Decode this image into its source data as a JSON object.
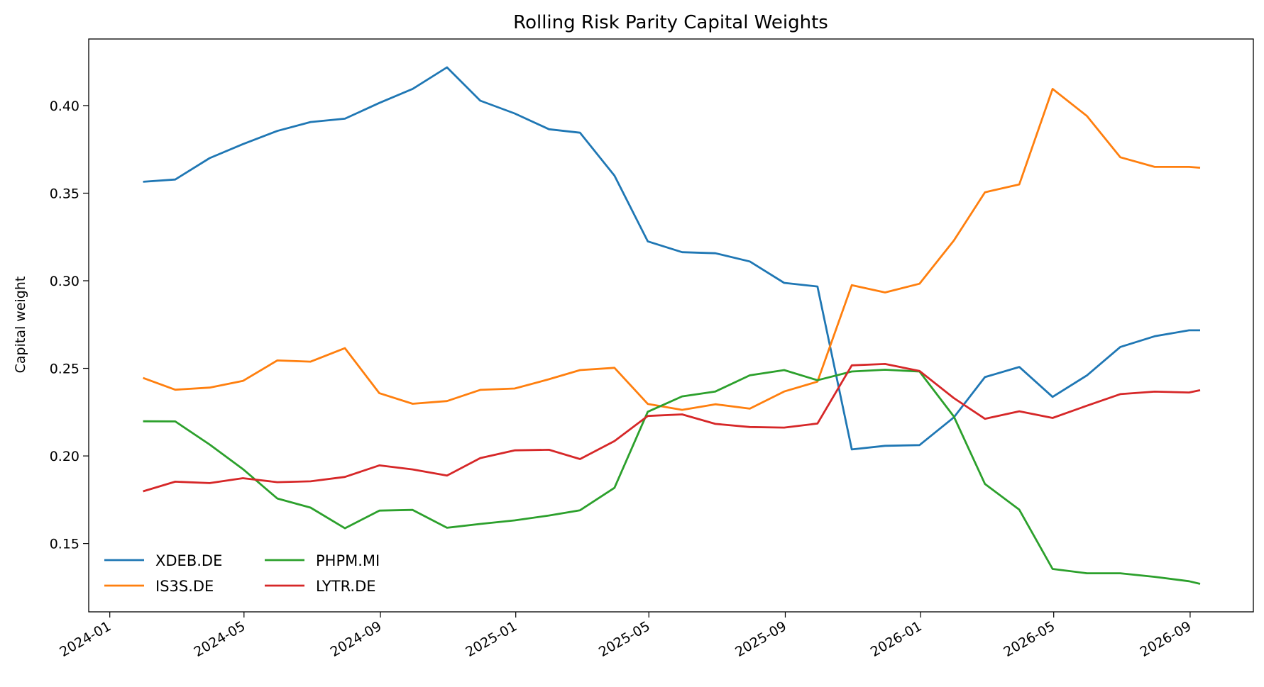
{
  "chart_data": {
    "type": "line",
    "title": "Rolling Risk Parity Capital Weights",
    "xlabel": "",
    "ylabel": "Capital weight",
    "xlim": [
      "2023-12-13",
      "2026-10-28"
    ],
    "ylim": [
      0.111,
      0.438
    ],
    "x_ticks": [
      "2024-01",
      "2024-05",
      "2024-09",
      "2025-01",
      "2025-05",
      "2025-09",
      "2026-01",
      "2026-05",
      "2026-09"
    ],
    "y_ticks": [
      0.15,
      0.2,
      0.25,
      0.3,
      0.35,
      0.4
    ],
    "y_tick_labels": [
      "0.15",
      "0.20",
      "0.25",
      "0.30",
      "0.35",
      "0.40"
    ],
    "grid": false,
    "legend": {
      "placement": "lower-left",
      "columns": 2
    },
    "x": [
      "2024-01-31",
      "2024-02-29",
      "2024-03-31",
      "2024-04-30",
      "2024-05-31",
      "2024-06-30",
      "2024-07-31",
      "2024-08-31",
      "2024-09-30",
      "2024-10-31",
      "2024-11-30",
      "2024-12-31",
      "2025-01-31",
      "2025-02-28",
      "2025-03-31",
      "2025-04-30",
      "2025-05-31",
      "2025-06-30",
      "2025-07-31",
      "2025-08-31",
      "2025-09-30",
      "2025-10-31",
      "2025-11-30",
      "2025-12-31",
      "2026-01-31",
      "2026-02-28",
      "2026-03-31",
      "2026-04-30",
      "2026-05-31",
      "2026-06-30",
      "2026-07-31",
      "2026-08-31",
      "2026-09-10"
    ],
    "series": [
      {
        "name": "XDEB.DE",
        "color": "#1f77b4",
        "values": [
          0.3565,
          0.3578,
          0.37,
          0.378,
          0.3855,
          0.3906,
          0.3925,
          0.4015,
          0.4095,
          0.4218,
          0.4028,
          0.3955,
          0.3865,
          0.3845,
          0.36,
          0.3225,
          0.3163,
          0.3157,
          0.311,
          0.2988,
          0.2967,
          0.2037,
          0.2058,
          0.2062,
          0.222,
          0.245,
          0.2508,
          0.2337,
          0.246,
          0.2622,
          0.2683,
          0.2717,
          0.2717
        ]
      },
      {
        "name": "IS3S.DE",
        "color": "#ff7f0e",
        "values": [
          0.2445,
          0.2378,
          0.239,
          0.2428,
          0.2545,
          0.2538,
          0.2615,
          0.2358,
          0.2298,
          0.2313,
          0.2377,
          0.2385,
          0.2438,
          0.249,
          0.2503,
          0.2297,
          0.2263,
          0.2295,
          0.227,
          0.2368,
          0.2424,
          0.2975,
          0.2933,
          0.2983,
          0.323,
          0.3505,
          0.355,
          0.4095,
          0.394,
          0.3705,
          0.365,
          0.365,
          0.3645
        ]
      },
      {
        "name": "PHPM.MI",
        "color": "#2ca02c",
        "values": [
          0.2198,
          0.2197,
          0.2065,
          0.1925,
          0.1757,
          0.1705,
          0.1587,
          0.1688,
          0.1692,
          0.159,
          0.1612,
          0.1632,
          0.166,
          0.169,
          0.1818,
          0.2252,
          0.234,
          0.2368,
          0.246,
          0.249,
          0.2432,
          0.2482,
          0.2492,
          0.2482,
          0.2225,
          0.184,
          0.1693,
          0.1355,
          0.133,
          0.133,
          0.131,
          0.1285,
          0.127
        ]
      },
      {
        "name": "LYTR.DE",
        "color": "#d62728",
        "values": [
          0.1798,
          0.1853,
          0.1845,
          0.1873,
          0.185,
          0.1855,
          0.188,
          0.1946,
          0.1923,
          0.1888,
          0.1988,
          0.2032,
          0.2035,
          0.1982,
          0.2085,
          0.2228,
          0.2237,
          0.2183,
          0.2165,
          0.2162,
          0.2185,
          0.2517,
          0.2525,
          0.2485,
          0.233,
          0.2212,
          0.2255,
          0.2217,
          0.2287,
          0.2353,
          0.2367,
          0.2362,
          0.2375
        ]
      }
    ]
  }
}
